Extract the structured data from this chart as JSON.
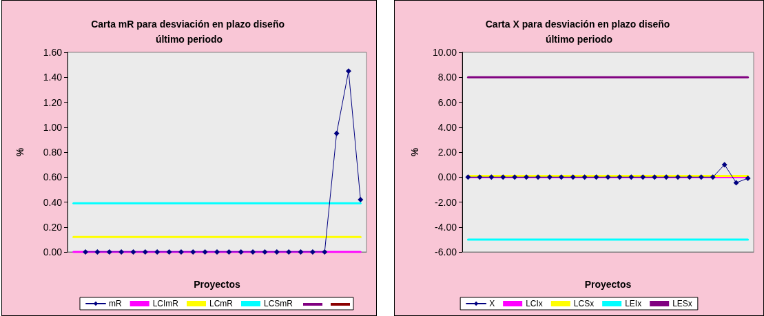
{
  "chart_data": [
    {
      "type": "line",
      "title": "Carta mR para desviación en plazo diseño último periodo",
      "xlabel": "Proyectos",
      "ylabel": "%",
      "categories": [
        null,
        null,
        null,
        null,
        null,
        null,
        null,
        null,
        null,
        null,
        null,
        null,
        null,
        null,
        null,
        null,
        null,
        null,
        null,
        null,
        null,
        null,
        null,
        null,
        null
      ],
      "series": [
        {
          "name": "mR",
          "color": "#000080",
          "marker": "diamond",
          "values": [
            null,
            0,
            0,
            0,
            0,
            0,
            0,
            0,
            0,
            0,
            0,
            0,
            0,
            0,
            0,
            0,
            0,
            0,
            0,
            0,
            0,
            0,
            0.95,
            1.45,
            0.42
          ]
        },
        {
          "name": "LCImR",
          "color": "#ff00ff",
          "marker": "none",
          "values": [
            0,
            0,
            0,
            0,
            0,
            0,
            0,
            0,
            0,
            0,
            0,
            0,
            0,
            0,
            0,
            0,
            0,
            0,
            0,
            0,
            0,
            0,
            0,
            0,
            0
          ]
        },
        {
          "name": "LCmR",
          "color": "#ffff00",
          "marker": "none",
          "values": [
            0.12,
            0.12,
            0.12,
            0.12,
            0.12,
            0.12,
            0.12,
            0.12,
            0.12,
            0.12,
            0.12,
            0.12,
            0.12,
            0.12,
            0.12,
            0.12,
            0.12,
            0.12,
            0.12,
            0.12,
            0.12,
            0.12,
            0.12,
            0.12,
            0.12
          ]
        },
        {
          "name": "LCSmR",
          "color": "#00ffff",
          "marker": "none",
          "values": [
            0.39,
            0.39,
            0.39,
            0.39,
            0.39,
            0.39,
            0.39,
            0.39,
            0.39,
            0.39,
            0.39,
            0.39,
            0.39,
            0.39,
            0.39,
            0.39,
            0.39,
            0.39,
            0.39,
            0.39,
            0.39,
            0.39,
            0.39,
            0.39,
            0.39
          ]
        },
        {
          "color": "#800080",
          "marker": "none",
          "values": [
            null,
            null,
            null,
            null,
            null,
            null,
            null,
            null,
            null,
            null,
            null,
            null,
            null,
            null,
            null,
            null,
            null,
            null,
            null,
            null,
            null,
            null,
            null,
            null,
            null
          ]
        },
        {
          "color": "#8b0000",
          "marker": "none",
          "values": [
            null,
            null,
            null,
            null,
            null,
            null,
            null,
            null,
            null,
            null,
            null,
            null,
            null,
            null,
            null,
            null,
            null,
            null,
            null,
            null,
            null,
            null,
            null,
            null,
            null
          ]
        }
      ],
      "ylim": [
        0,
        1.6
      ],
      "yticks": [
        {
          "value": 0,
          "label": "0.00"
        },
        {
          "value": 0.2,
          "label": "0.20"
        },
        {
          "value": 0.4,
          "label": "0.40"
        },
        {
          "value": 0.6,
          "label": "0.60"
        },
        {
          "value": 0.8,
          "label": "0.80"
        },
        {
          "value": 1,
          "label": "1.00"
        },
        {
          "value": 1.2,
          "label": "1.20"
        },
        {
          "value": 1.4,
          "label": "1.40"
        },
        {
          "value": 1.6,
          "label": "1.60"
        }
      ],
      "grid": false,
      "legend": "bottom"
    },
    {
      "type": "line",
      "title": "Carta X para desviación en plazo diseño último periodo",
      "xlabel": "Proyectos",
      "ylabel": "%",
      "categories": [
        null,
        null,
        null,
        null,
        null,
        null,
        null,
        null,
        null,
        null,
        null,
        null,
        null,
        null,
        null,
        null,
        null,
        null,
        null,
        null,
        null,
        null,
        null,
        null,
        null
      ],
      "series": [
        {
          "name": "X",
          "color": "#000080",
          "marker": "diamond",
          "values": [
            0,
            0,
            0,
            0,
            0,
            0,
            0,
            0,
            0,
            0,
            0,
            0,
            0,
            0,
            0,
            0,
            0,
            0,
            0,
            0,
            0,
            0,
            1,
            -0.45,
            -0.1
          ]
        },
        {
          "name": "LCIx",
          "color": "#ff00ff",
          "marker": "none",
          "values": [
            0,
            0,
            0,
            0,
            0,
            0,
            0,
            0,
            0,
            0,
            0,
            0,
            0,
            0,
            0,
            0,
            0,
            0,
            0,
            0,
            0,
            0,
            0,
            0,
            0
          ]
        },
        {
          "name": "LCSx",
          "color": "#ffff00",
          "marker": "none",
          "values": [
            0.1,
            0.1,
            0.1,
            0.1,
            0.1,
            0.1,
            0.1,
            0.1,
            0.1,
            0.1,
            0.1,
            0.1,
            0.1,
            0.1,
            0.1,
            0.1,
            0.1,
            0.1,
            0.1,
            0.1,
            0.1,
            0.1,
            0.1,
            0.1,
            0.1
          ]
        },
        {
          "name": "LEIx",
          "color": "#00ffff",
          "marker": "none",
          "values": [
            -5,
            -5,
            -5,
            -5,
            -5,
            -5,
            -5,
            -5,
            -5,
            -5,
            -5,
            -5,
            -5,
            -5,
            -5,
            -5,
            -5,
            -5,
            -5,
            -5,
            -5,
            -5,
            -5,
            -5,
            -5
          ]
        },
        {
          "name": "LESx",
          "color": "#800080",
          "marker": "none",
          "values": [
            8,
            8,
            8,
            8,
            8,
            8,
            8,
            8,
            8,
            8,
            8,
            8,
            8,
            8,
            8,
            8,
            8,
            8,
            8,
            8,
            8,
            8,
            8,
            8,
            8
          ]
        }
      ],
      "ylim": [
        -6,
        10
      ],
      "yticks": [
        {
          "value": -6,
          "label": "-6.00"
        },
        {
          "value": -4,
          "label": "-4.00"
        },
        {
          "value": -2,
          "label": "-2.00"
        },
        {
          "value": 0,
          "label": "0.00"
        },
        {
          "value": 2,
          "label": "2.00"
        },
        {
          "value": 4,
          "label": "4.00"
        },
        {
          "value": 6,
          "label": "6.00"
        },
        {
          "value": 8,
          "label": "8.00"
        },
        {
          "value": 10,
          "label": "10.00"
        }
      ],
      "grid": false,
      "legend": "bottom"
    }
  ]
}
